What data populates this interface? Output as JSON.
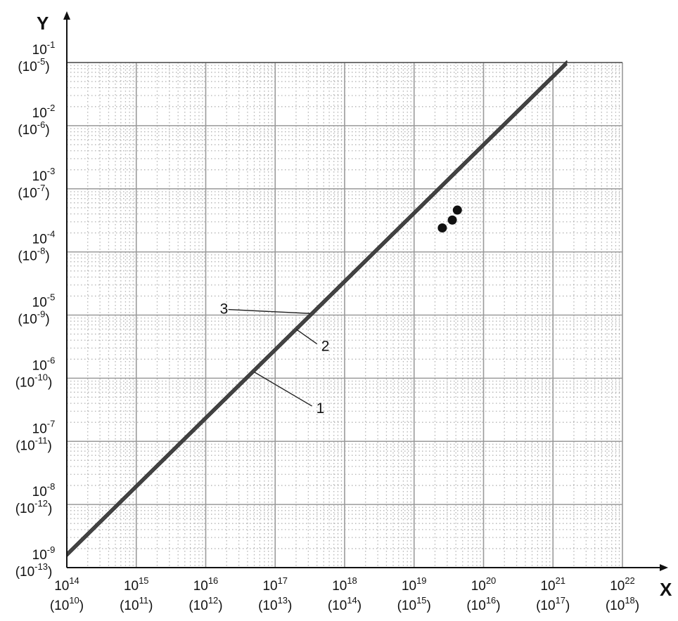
{
  "chart_data": {
    "type": "line",
    "xscale": "log",
    "yscale": "log",
    "xlabel": "X",
    "ylabel": "Y",
    "xlim": [
      100000000000000.0,
      1e+22
    ],
    "ylim": [
      1e-09,
      0.1
    ],
    "x_ticks": [
      {
        "base": "10",
        "exp": "14",
        "alt_base": "(10",
        "alt_exp": "10",
        "close": ")"
      },
      {
        "base": "10",
        "exp": "15",
        "alt_base": "(10",
        "alt_exp": "11",
        "close": ")"
      },
      {
        "base": "10",
        "exp": "16",
        "alt_base": "(10",
        "alt_exp": "12",
        "close": ")"
      },
      {
        "base": "10",
        "exp": "17",
        "alt_base": "(10",
        "alt_exp": "13",
        "close": ")"
      },
      {
        "base": "10",
        "exp": "18",
        "alt_base": "(10",
        "alt_exp": "14",
        "close": ")"
      },
      {
        "base": "10",
        "exp": "19",
        "alt_base": "(10",
        "alt_exp": "15",
        "close": ")"
      },
      {
        "base": "10",
        "exp": "20",
        "alt_base": "(10",
        "alt_exp": "16",
        "close": ")"
      },
      {
        "base": "10",
        "exp": "21",
        "alt_base": "(10",
        "alt_exp": "17",
        "close": ")"
      },
      {
        "base": "10",
        "exp": "22",
        "alt_base": "(10",
        "alt_exp": "18",
        "close": ")"
      }
    ],
    "y_ticks": [
      {
        "base": "10",
        "exp": "-1",
        "alt_base": "(10",
        "alt_exp": "-5",
        "close": ")"
      },
      {
        "base": "10",
        "exp": "-2",
        "alt_base": "(10",
        "alt_exp": "-6",
        "close": ")"
      },
      {
        "base": "10",
        "exp": "-3",
        "alt_base": "(10",
        "alt_exp": "-7",
        "close": ")"
      },
      {
        "base": "10",
        "exp": "-4",
        "alt_base": "(10",
        "alt_exp": "-8",
        "close": ")"
      },
      {
        "base": "10",
        "exp": "-5",
        "alt_base": "(10",
        "alt_exp": "-9",
        "close": ")"
      },
      {
        "base": "10",
        "exp": "-6",
        "alt_base": "(10",
        "alt_exp": "-10",
        "close": ")"
      },
      {
        "base": "10",
        "exp": "-7",
        "alt_base": "(10",
        "alt_exp": "-11",
        "close": ")"
      },
      {
        "base": "10",
        "exp": "-8",
        "alt_base": "(10",
        "alt_exp": "-12",
        "close": ")"
      },
      {
        "base": "10",
        "exp": "-9",
        "alt_base": "(10",
        "alt_exp": "-13",
        "close": ")"
      }
    ],
    "series": [
      {
        "label": "1",
        "x": [
          100000000000000.0,
          1.6e+21
        ],
        "y": [
          1.6e-09,
          0.1
        ]
      },
      {
        "label": "2",
        "x": [
          100000000000000.0,
          1.6e+21
        ],
        "y": [
          1.6e-09,
          0.1
        ]
      },
      {
        "label": "3",
        "x": [
          100000000000000.0,
          1.6e+21
        ],
        "y": [
          1.6e-09,
          0.1
        ]
      }
    ],
    "points": [
      {
        "x": 2.55e+19,
        "y": 0.00024
      },
      {
        "x": 3.55e+19,
        "y": 0.00032
      },
      {
        "x": 4.2e+19,
        "y": 0.00046
      }
    ],
    "annotations": [
      {
        "text": "3",
        "x": 1.6e+16,
        "y": 1.05e-05
      },
      {
        "text": "2",
        "x": 4.6e+17,
        "y": 2.7e-06
      },
      {
        "text": "1",
        "x": 3.9e+17,
        "y": 2.8e-07
      }
    ],
    "grid": "major solid, minor dotted",
    "colors": {
      "axis": "#111111",
      "grid_major": "#9a9a9a",
      "grid_minor": "#b4b4b4",
      "line": "#3a3a3a",
      "point": "#111111"
    }
  }
}
